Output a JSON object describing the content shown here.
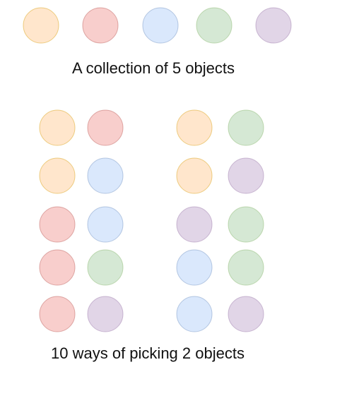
{
  "objects": [
    {
      "name": "orange",
      "fill": "#FFE6CC",
      "stroke": "#D79B00"
    },
    {
      "name": "red",
      "fill": "#F8CECC",
      "stroke": "#B85450"
    },
    {
      "name": "blue",
      "fill": "#DAE8FC",
      "stroke": "#6C8EBF"
    },
    {
      "name": "green",
      "fill": "#D5E8D4",
      "stroke": "#82B366"
    },
    {
      "name": "purple",
      "fill": "#E1D5E7",
      "stroke": "#9673A6"
    }
  ],
  "collection_caption": "A collection of 5 objects",
  "pairs_caption": "10 ways of picking 2 objects",
  "pairs_left": [
    [
      "orange",
      "red"
    ],
    [
      "orange",
      "blue"
    ],
    [
      "red",
      "blue"
    ],
    [
      "red",
      "green"
    ],
    [
      "red",
      "purple"
    ]
  ],
  "pairs_right": [
    [
      "orange",
      "green"
    ],
    [
      "orange",
      "purple"
    ],
    [
      "purple",
      "green"
    ],
    [
      "blue",
      "green"
    ],
    [
      "blue",
      "purple"
    ]
  ]
}
